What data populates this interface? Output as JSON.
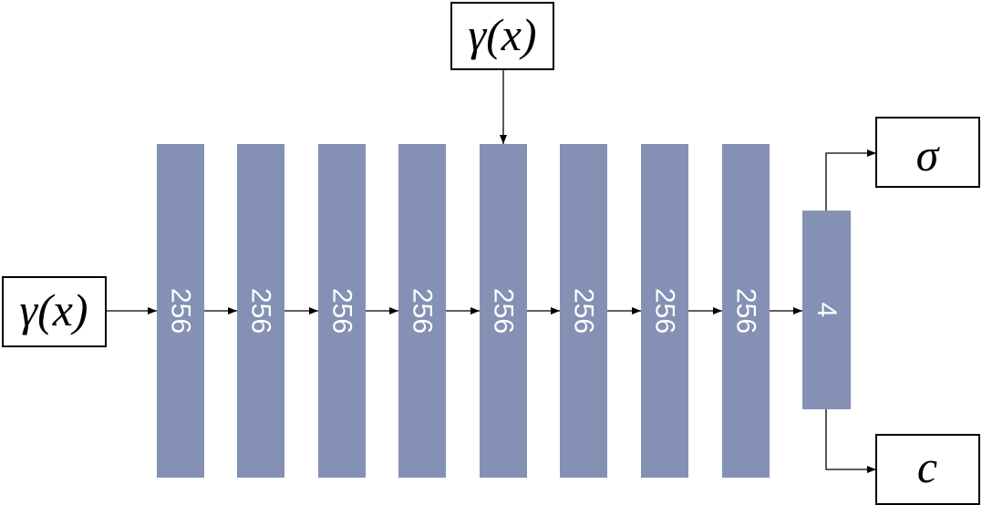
{
  "input": {
    "label": "γ(x)"
  },
  "skip_input": {
    "label": "γ(x)"
  },
  "layers": [
    {
      "label": "256"
    },
    {
      "label": "256"
    },
    {
      "label": "256"
    },
    {
      "label": "256"
    },
    {
      "label": "256"
    },
    {
      "label": "256"
    },
    {
      "label": "256"
    },
    {
      "label": "256"
    }
  ],
  "output_layer": {
    "label": "4"
  },
  "outputs": [
    {
      "label": "σ"
    },
    {
      "label": "c"
    }
  ]
}
